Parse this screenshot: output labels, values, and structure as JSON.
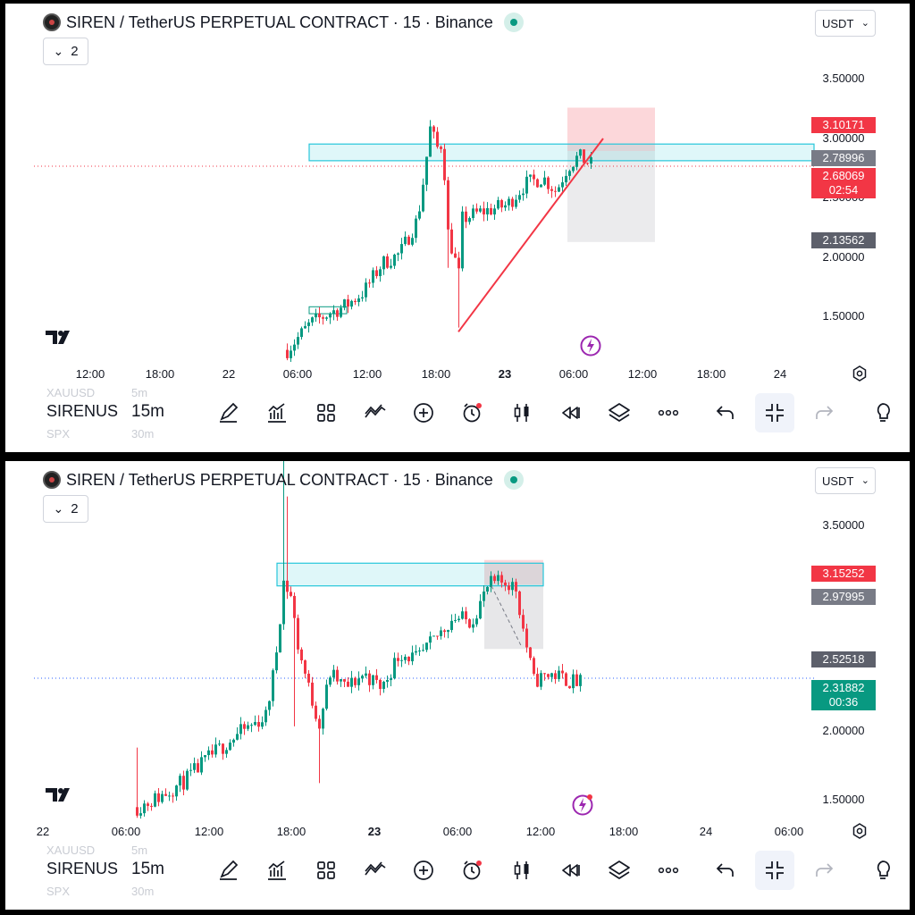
{
  "panels": [
    {
      "title": "SIREN / TetherUS PERPETUAL CONTRACT · 15 · Binance",
      "currency": "USDT",
      "indicator_count": "2",
      "price_axis": [
        "3.50000",
        "3.00000",
        "2.50000",
        "2.00000",
        "1.50000"
      ],
      "price_labels": {
        "stop_loss": "3.10171",
        "entry": "2.78996",
        "last_price": "2.68069",
        "countdown": "02:54",
        "take_profit": "2.13562"
      },
      "time_axis": [
        "12:00",
        "18:00",
        "22",
        "06:00",
        "12:00",
        "18:00",
        "23",
        "06:00",
        "12:00",
        "18:00",
        "24"
      ],
      "colors": {
        "down": "#f23645",
        "up": "#089981",
        "zone": "#26c6da",
        "last": "#f23645"
      },
      "chart_data": {
        "type": "candlestick",
        "symbol": "SIRENUSDT",
        "interval": "15m",
        "ylim": [
          1.28,
          3.85
        ],
        "last_price": 2.68069,
        "resistance_zone": [
          2.72,
          2.84
        ],
        "short_position": {
          "entry": 2.78996,
          "stop": 3.10171,
          "target": 2.13562
        },
        "trendline": {
          "from": 1.49,
          "to": 2.88
        }
      }
    },
    {
      "title": "SIREN / TetherUS PERPETUAL CONTRACT · 15 · Binance",
      "currency": "USDT",
      "indicator_count": "2",
      "price_axis": [
        "3.50000",
        "2.00000",
        "1.50000"
      ],
      "price_labels": {
        "stop_loss": "3.15252",
        "entry": "2.97995",
        "take_profit": "2.52518",
        "last_price": "2.31882",
        "countdown": "00:36"
      },
      "time_axis": [
        "22",
        "06:00",
        "12:00",
        "18:00",
        "23",
        "06:00",
        "12:00",
        "18:00",
        "24",
        "06:00"
      ],
      "colors": {
        "down": "#f23645",
        "up": "#089981",
        "zone": "#26c6da",
        "last": "#089981"
      },
      "chart_data": {
        "type": "candlestick",
        "symbol": "SIRENUSDT",
        "interval": "15m",
        "ylim": [
          1.33,
          3.85
        ],
        "last_price": 2.31882,
        "resistance_zone": [
          2.97,
          3.13
        ],
        "short_position": {
          "entry": 2.97995,
          "stop": 3.15252,
          "target": 2.52518
        }
      }
    }
  ],
  "toolbar": {
    "symbol": "SIRENUSDT",
    "interval": "15m",
    "ghost_symbol_above": "XAUUSD",
    "ghost_interval_above": "5m",
    "ghost_symbol_below": "SPX",
    "ghost_interval_below": "30m"
  }
}
